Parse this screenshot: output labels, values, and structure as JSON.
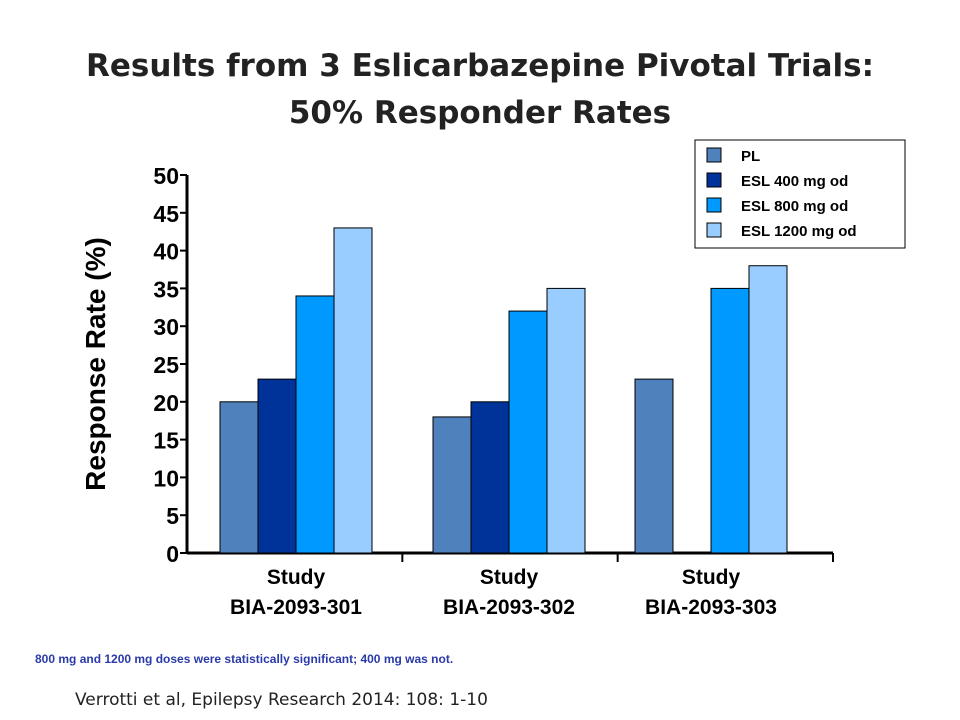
{
  "header": {
    "title_line1": "Results from 3 Eslicarbazepine Pivotal Trials:",
    "title_line2": "50% Responder Rates"
  },
  "chart_data": {
    "type": "bar",
    "ylabel": "Response Rate (%)",
    "ylim": [
      0,
      50
    ],
    "yticks": [
      0,
      5,
      10,
      15,
      20,
      25,
      30,
      35,
      40,
      45,
      50
    ],
    "categories": [
      {
        "line1": "Study",
        "line2": "BIA-2093-301"
      },
      {
        "line1": "Study",
        "line2": "BIA-2093-302"
      },
      {
        "line1": "Study",
        "line2": "BIA-2093-303"
      }
    ],
    "series": [
      {
        "name": "PL",
        "color": "#4f81bd",
        "values": [
          20,
          18,
          23
        ]
      },
      {
        "name": "ESL 400 mg od",
        "color": "#003399",
        "values": [
          23,
          20,
          null
        ]
      },
      {
        "name": "ESL 800 mg od",
        "color": "#0099ff",
        "values": [
          34,
          32,
          35
        ]
      },
      {
        "name": "ESL 1200 mg od",
        "color": "#99ccff",
        "values": [
          43,
          35,
          38
        ]
      }
    ],
    "legend_position": "top-right",
    "grid": false
  },
  "footnote": "800 mg and 1200 mg doses were statistically  significant; 400 mg was not.",
  "citation": "Verrotti et al, Epilepsy Research 2014: 108: 1-10"
}
